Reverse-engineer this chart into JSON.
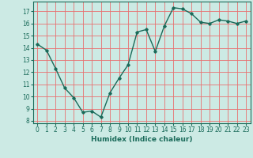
{
  "x": [
    0,
    1,
    2,
    3,
    4,
    5,
    6,
    7,
    8,
    9,
    10,
    11,
    12,
    13,
    14,
    15,
    16,
    17,
    18,
    19,
    20,
    21,
    22,
    23
  ],
  "y": [
    14.3,
    13.8,
    12.3,
    10.7,
    9.9,
    8.7,
    8.8,
    8.3,
    10.3,
    11.5,
    12.6,
    15.3,
    15.5,
    13.7,
    15.8,
    17.3,
    17.2,
    16.8,
    16.1,
    16.0,
    16.3,
    16.2,
    16.0,
    16.2
  ],
  "line_color": "#1a6b5a",
  "marker": "D",
  "marker_size": 1.8,
  "bg_color": "#cceae4",
  "grid_color": "#e87070",
  "xlabel": "Humidex (Indice chaleur)",
  "xlim": [
    -0.5,
    23.5
  ],
  "ylim": [
    7.8,
    17.8
  ],
  "yticks": [
    8,
    9,
    10,
    11,
    12,
    13,
    14,
    15,
    16,
    17
  ],
  "xticks": [
    0,
    1,
    2,
    3,
    4,
    5,
    6,
    7,
    8,
    9,
    10,
    11,
    12,
    13,
    14,
    15,
    16,
    17,
    18,
    19,
    20,
    21,
    22,
    23
  ],
  "tick_fontsize": 5.5,
  "xlabel_fontsize": 6.5,
  "linewidth": 1.0
}
